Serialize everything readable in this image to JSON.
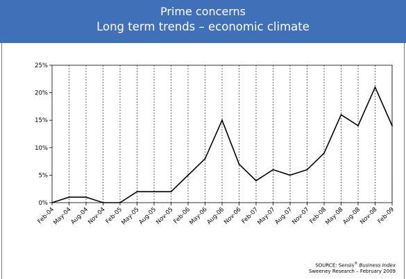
{
  "header": {
    "title_line1": "Prime concerns",
    "title_line2": "Long term trends – economic climate"
  },
  "source": {
    "prefix": "SOURCE: Sensis",
    "mark": "®",
    "publication": "Business Index",
    "line2": "Sweeney Research – February 2009"
  },
  "colors": {
    "header_bg": "#3f70b8",
    "line": "#000000",
    "grid": "#000000"
  },
  "chart_data": {
    "type": "line",
    "title": "",
    "xlabel": "",
    "ylabel": "",
    "ylim": [
      0,
      25
    ],
    "y_ticks": [
      "0%",
      "5%",
      "10%",
      "15%",
      "20%",
      "25%"
    ],
    "y_tick_values": [
      0,
      5,
      10,
      15,
      20,
      25
    ],
    "grid": "vertical dashed",
    "categories": [
      "Feb-04",
      "May-04",
      "Aug-04",
      "Nov-04",
      "Feb-05",
      "May-05",
      "Aug-05",
      "Nov-05",
      "Feb-06",
      "May-06",
      "Aug-06",
      "Nov-06",
      "Feb-07",
      "May-07",
      "Aug-07",
      "Nov-07",
      "Feb-08",
      "May-08",
      "Aug-08",
      "Nov-08",
      "Feb-09"
    ],
    "series": [
      {
        "values": [
          0,
          1,
          1,
          0,
          0,
          2,
          2,
          2,
          5,
          8,
          15,
          7,
          4,
          6,
          5,
          6,
          9,
          16,
          14,
          21,
          14
        ]
      }
    ]
  }
}
